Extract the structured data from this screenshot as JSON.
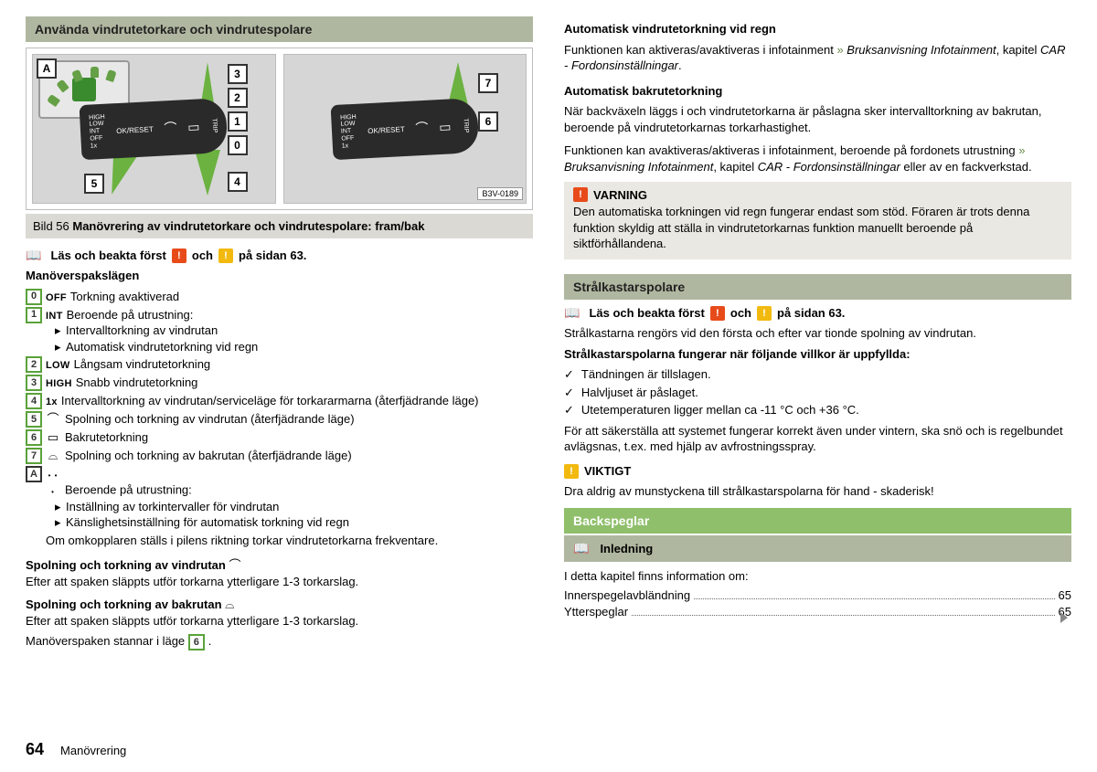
{
  "colors": {
    "sectionbar": "#b0b7a0",
    "green": "#8fbf6b",
    "greenBtn": "#5aa23a",
    "warnRed": "#e84b1a",
    "warnYellow": "#f2b90f",
    "greyBg": "#e9e8e2",
    "captionBg": "#dad9d3"
  },
  "footer": {
    "page": "64",
    "chapter": "Manövrering"
  },
  "left": {
    "header": "Använda vindrutetorkare och vindrutespolare",
    "figure": {
      "id": "B3V-0189",
      "captionPrefix": "Bild 56  ",
      "captionBold": "Manövrering av vindrutetorkare och vindrutespolare: fram/bak",
      "leverTicks": [
        "HIGH",
        "LOW",
        "INT",
        "OFF",
        "1x"
      ],
      "leverBtn": "OK/RESET",
      "leftNums": [
        "3",
        "2",
        "1",
        "0",
        "4"
      ],
      "leftExtra": "5",
      "leftLetter": "A",
      "rightNums": [
        "7",
        "6"
      ]
    },
    "readFirst": {
      "pre": "Läs och beakta först ",
      "mid": " och ",
      "suf": " på sidan 63."
    },
    "leverTitle": "Manöverspakslägen",
    "items": [
      {
        "key": "0",
        "keyType": "num",
        "label": "OFF",
        "text": "Torkning avaktiverad"
      },
      {
        "key": "1",
        "keyType": "num",
        "label": "INT",
        "text": "Beroende på utrustning:",
        "subs": [
          "Intervalltorkning av vindrutan",
          "Automatisk vindrutetorkning vid regn"
        ]
      },
      {
        "key": "2",
        "keyType": "num",
        "label": "LOW",
        "text": "Långsam vindrutetorkning"
      },
      {
        "key": "3",
        "keyType": "num",
        "label": "HIGH",
        "text": "Snabb vindrutetorkning"
      },
      {
        "key": "4",
        "keyType": "num",
        "label": "1x",
        "text": "Intervalltorkning av vindrutan/serviceläge för torkararmarna (återfjädrande läge)"
      },
      {
        "key": "5",
        "keyType": "num",
        "symbol": "⌒",
        "text": "Spolning och torkning av vindrutan (återfjädrande läge)"
      },
      {
        "key": "6",
        "keyType": "num",
        "symbol": "▭",
        "text": "Bakrutetorkning"
      },
      {
        "key": "7",
        "keyType": "num",
        "symbol": "⌓",
        "text": "Spolning och torkning av bakrutan (återfjädrande läge)"
      },
      {
        "key": "A",
        "keyType": "letter",
        "symbol": "dots",
        "text": "Beroende på utrustning:",
        "subs": [
          "Inställning av torkintervaller för vindrutan",
          "Känslighetsinställning för automatisk torkning vid regn"
        ],
        "after": "Om omkopplaren ställs i pilens riktning torkar vindrutetorkarna frekventare."
      }
    ],
    "para1Title": "Spolning och torkning av vindrutan ",
    "para1Icon": "⌒",
    "para1Text": "Efter att spaken släppts utför torkarna ytterligare 1-3 torkarslag.",
    "para2Title": "Spolning och torkning av bakrutan ",
    "para2Icon": "⌓",
    "para2Text": "Efter att spaken släppts utför torkarna ytterligare 1-3 torkarslag.",
    "para3Pre": "Manöverspaken stannar i läge ",
    "para3Key": "6",
    "para3Suf": "."
  },
  "right": {
    "b1Title": "Automatisk vindrutetorkning vid regn",
    "b1a": "Funktionen kan aktiveras/avaktiveras i infotainment ",
    "b1ref": "» ",
    "b1i": "Bruksanvisning Infotainment",
    "b1b": ", kapitel ",
    "b1ic": "CAR - Fordonsinställningar",
    "b1c": ".",
    "b2Title": "Automatisk bakrutetorkning",
    "b2": "När backväxeln läggs i och vindrutetorkarna är påslagna sker intervalltorkning av bakrutan, beroende på vindrutetorkarnas torkarhastighet.",
    "b3a": "Funktionen kan avaktiveras/aktiveras i infotainment, beroende på fordonets utrustning ",
    "b3b": " eller av en fackverkstad.",
    "warn": {
      "hdr": "VARNING",
      "txt": "Den automatiska torkningen vid regn fungerar endast som stöd. Föraren är trots denna funktion skyldig att ställa in vindrutetorkarnas funktion manuellt beroende på siktförhållandena."
    },
    "sHeadlight": "Strålkastarspolare",
    "readFirst": {
      "pre": "Läs och beakta först ",
      "mid": " och ",
      "suf": " på sidan 63."
    },
    "hl1": "Strålkastarna rengörs vid den första och efter var tionde spolning av vindrutan.",
    "hlCondTitle": "Strålkastarspolarna fungerar när följande villkor är uppfyllda:",
    "hlConds": [
      "Tändningen är tillslagen.",
      "Halvljuset är påslaget.",
      "Utetemperaturen ligger mellan ca -11 °C och +36 °C."
    ],
    "hl2": "För att säkerställa att systemet fungerar korrekt även under vintern, ska snö och is regelbundet avlägsnas, t.ex. med hjälp av avfrostningsspray.",
    "viktigtHdr": "VIKTIGT",
    "viktigtTxt": "Dra aldrig av munstyckena till strålkastarspolarna för hand - skaderisk!",
    "sMirrors": "Backspeglar",
    "subIntro": "Inledning",
    "tocTitle": "I detta kapitel finns information om:",
    "toc": [
      {
        "label": "Innerspegelavbländning",
        "page": "65"
      },
      {
        "label": "Ytterspeglar",
        "page": "65"
      }
    ]
  }
}
